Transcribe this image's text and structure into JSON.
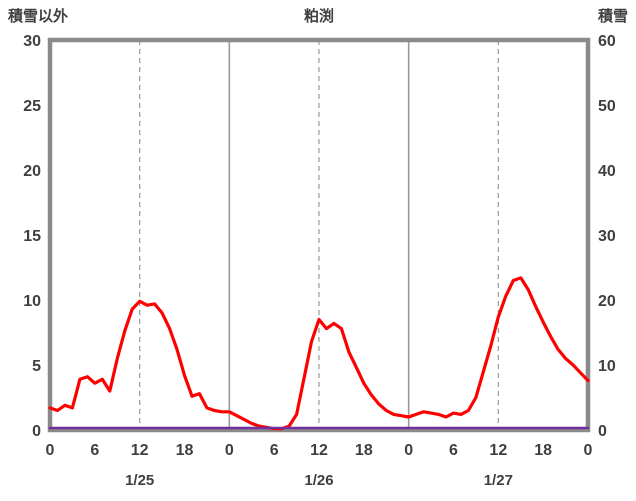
{
  "chart_data": {
    "type": "line",
    "title": "粕渕",
    "left_axis": {
      "label": "積雪以外",
      "min": 0,
      "max": 30,
      "ticks": [
        0,
        5,
        10,
        15,
        20,
        25,
        30
      ]
    },
    "right_axis": {
      "label": "積雪",
      "min": 0,
      "max": 60,
      "ticks": [
        0,
        10,
        20,
        30,
        40,
        50,
        60
      ]
    },
    "x_axis": {
      "unit": "hour",
      "total_hours": 72,
      "hour_tick_labels": [
        {
          "hour": 0,
          "label": "0"
        },
        {
          "hour": 6,
          "label": "6"
        },
        {
          "hour": 12,
          "label": "12"
        },
        {
          "hour": 18,
          "label": "18"
        },
        {
          "hour": 24,
          "label": "0"
        },
        {
          "hour": 30,
          "label": "6"
        },
        {
          "hour": 36,
          "label": "12"
        },
        {
          "hour": 42,
          "label": "18"
        },
        {
          "hour": 48,
          "label": "0"
        },
        {
          "hour": 54,
          "label": "6"
        },
        {
          "hour": 60,
          "label": "12"
        },
        {
          "hour": 66,
          "label": "18"
        },
        {
          "hour": 72,
          "label": "0"
        }
      ],
      "day_labels": [
        {
          "hour": 12,
          "label": "1/25"
        },
        {
          "hour": 36,
          "label": "1/26"
        },
        {
          "hour": 60,
          "label": "1/27"
        }
      ],
      "solid_gridline_hours": [
        24,
        48
      ],
      "dashed_gridline_hours": [
        12,
        36,
        60
      ]
    },
    "series": [
      {
        "name": "積雪以外",
        "axis": "left",
        "color": "#ff0000",
        "values": [
          1.7,
          1.5,
          1.9,
          1.7,
          3.9,
          4.1,
          3.6,
          3.9,
          3.0,
          5.5,
          7.6,
          9.3,
          9.9,
          9.6,
          9.7,
          9.0,
          7.8,
          6.2,
          4.2,
          2.6,
          2.8,
          1.7,
          1.5,
          1.4,
          1.4,
          1.1,
          0.8,
          0.5,
          0.3,
          0.2,
          0.1,
          0.1,
          0.3,
          1.2,
          4.0,
          6.8,
          8.5,
          7.8,
          8.2,
          7.8,
          6.0,
          4.8,
          3.6,
          2.7,
          2.0,
          1.5,
          1.2,
          1.1,
          1.0,
          1.2,
          1.4,
          1.3,
          1.2,
          1.0,
          1.3,
          1.2,
          1.5,
          2.5,
          4.5,
          6.5,
          8.7,
          10.3,
          11.5,
          11.7,
          10.8,
          9.5,
          8.3,
          7.2,
          6.2,
          5.5,
          5.0,
          4.4,
          3.8
        ]
      },
      {
        "name": "積雪",
        "axis": "right",
        "color": "#7030a0",
        "values": [
          0,
          0,
          0,
          0,
          0,
          0,
          0,
          0,
          0,
          0,
          0,
          0,
          0,
          0,
          0,
          0,
          0,
          0,
          0,
          0,
          0,
          0,
          0,
          0,
          0,
          0,
          0,
          0,
          0,
          0,
          0,
          0,
          0,
          0,
          0,
          0,
          0,
          0,
          0,
          0,
          0,
          0,
          0,
          0,
          0,
          0,
          0,
          0,
          0,
          0,
          0,
          0,
          0,
          0,
          0,
          0,
          0,
          0,
          0,
          0,
          0,
          0,
          0,
          0,
          0,
          0,
          0,
          0,
          0,
          0,
          0,
          0,
          0
        ]
      }
    ],
    "colors": {
      "frame": "#8a8a8a",
      "gridline": "#9a9a9a",
      "text": "#3f3f3f",
      "series_non_snow": "#ff0000",
      "series_snow": "#7030a0"
    },
    "grid": "vertical-only",
    "legend": "none"
  }
}
